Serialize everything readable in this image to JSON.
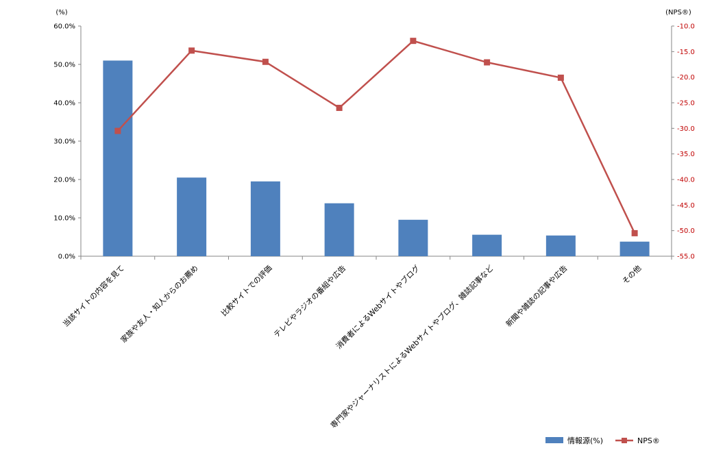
{
  "chart_data": {
    "type": "bar",
    "categories": [
      "当該サイトの内容を見て",
      "家族や友人・知人からのお薦め",
      "比較サイトでの評価",
      "テレビやラジオの番組や広告",
      "消費者によるWebサイトやブログ",
      "専門家やジャーナリストによるWebサイトやブログ、雑誌記事など",
      "新聞や雑誌の記事や広告",
      "その他"
    ],
    "series": [
      {
        "name": "情報源(%)",
        "type": "bar",
        "axis": "left",
        "color": "#4f81bd",
        "values": [
          51.0,
          20.5,
          19.5,
          13.8,
          9.5,
          5.6,
          5.4,
          3.8
        ]
      },
      {
        "name": "NPS®",
        "type": "line",
        "axis": "right",
        "color": "#c0504d",
        "values": [
          -30.5,
          -14.8,
          -17.0,
          -26.0,
          -12.9,
          -17.1,
          -20.1,
          -50.5
        ]
      }
    ],
    "y_left": {
      "unit_label": "(%)",
      "min": 0,
      "max": 60,
      "step": 10,
      "tick_labels": [
        "0.0%",
        "10.0%",
        "20.0%",
        "30.0%",
        "40.0%",
        "50.0%",
        "60.0%"
      ]
    },
    "y_right": {
      "unit_label": "(NPS®)",
      "min": -55,
      "max": -10,
      "step": 5,
      "tick_labels": [
        "-55.0",
        "-50.0",
        "-45.0",
        "-40.0",
        "-35.0",
        "-30.0",
        "-25.0",
        "-20.0",
        "-15.0",
        "-10.0"
      ],
      "color": "#c00000"
    },
    "grid": false,
    "legend_position": "bottom-right"
  }
}
